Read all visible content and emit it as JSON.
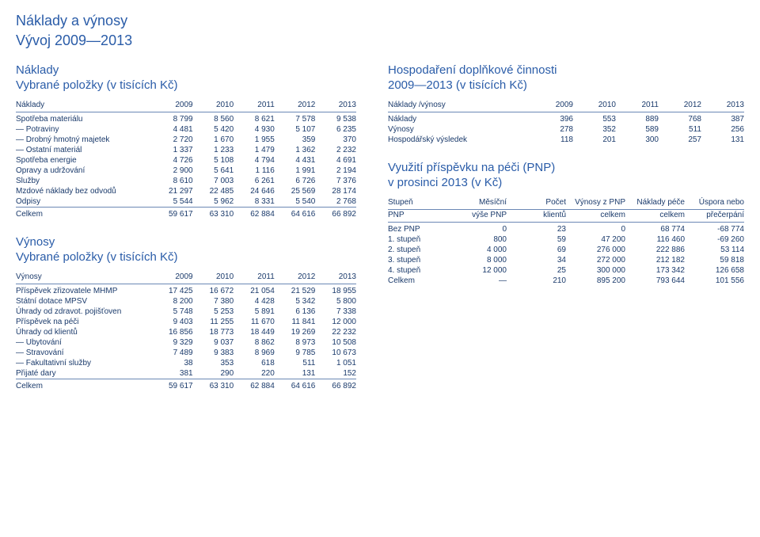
{
  "page_title_1": "Náklady a výnosy",
  "page_title_2": "Vývoj 2009—2013",
  "left": {
    "naklady_title_1": "Náklady",
    "naklady_title_2": "Vybrané položky (v tisících Kč)",
    "naklady_head": [
      "Náklady",
      "2009",
      "2010",
      "2011",
      "2012",
      "2013"
    ],
    "naklady_rows": [
      [
        "Spotřeba materiálu",
        "8 799",
        "8 560",
        "8 621",
        "7 578",
        "9 538"
      ],
      [
        "— Potraviny",
        "4 481",
        "5 420",
        "4 930",
        "5 107",
        "6 235"
      ],
      [
        "— Drobný hmotný majetek",
        "2 720",
        "1 670",
        "1 955",
        "359",
        "370"
      ],
      [
        "— Ostatní materiál",
        "1 337",
        "1 233",
        "1 479",
        "1 362",
        "2 232"
      ],
      [
        "Spotřeba energie",
        "4 726",
        "5 108",
        "4 794",
        "4 431",
        "4 691"
      ],
      [
        "Opravy a udržování",
        "2 900",
        "5 641",
        "1 116",
        "1 991",
        "2 194"
      ],
      [
        "Služby",
        "8 610",
        "7 003",
        "6 261",
        "6 726",
        "7 376"
      ],
      [
        "Mzdové náklady bez odvodů",
        "21 297",
        "22 485",
        "24 646",
        "25 569",
        "28 174"
      ],
      [
        "Odpisy",
        "5 544",
        "5 962",
        "8 331",
        "5 540",
        "2 768"
      ]
    ],
    "naklady_total": [
      "Celkem",
      "59 617",
      "63 310",
      "62 884",
      "64 616",
      "66 892"
    ],
    "vynosy_title_1": "Výnosy",
    "vynosy_title_2": "Vybrané položky (v tisících Kč)",
    "vynosy_head": [
      "Výnosy",
      "2009",
      "2010",
      "2011",
      "2012",
      "2013"
    ],
    "vynosy_rows": [
      [
        "Příspěvek zřizovatele MHMP",
        "17 425",
        "16 672",
        "21 054",
        "21 529",
        "18 955"
      ],
      [
        "Státní dotace MPSV",
        "8 200",
        "7 380",
        "4 428",
        "5 342",
        "5 800"
      ],
      [
        "Úhrady od zdravot. pojišťoven",
        "5 748",
        "5 253",
        "5 891",
        "6 136",
        "7 338"
      ],
      [
        "Příspěvek na péči",
        "9 403",
        "11 255",
        "11 670",
        "11 841",
        "12 000"
      ],
      [
        "Úhrady od klientů",
        "16 856",
        "18 773",
        "18 449",
        "19 269",
        "22 232"
      ],
      [
        "— Ubytování",
        "9 329",
        "9 037",
        "8 862",
        "8 973",
        "10 508"
      ],
      [
        "— Stravování",
        "7 489",
        "9 383",
        "8 969",
        "9 785",
        "10 673"
      ],
      [
        "— Fakultativní služby",
        "38",
        "353",
        "618",
        "511",
        "1 051"
      ],
      [
        "Přijaté dary",
        "381",
        "290",
        "220",
        "131",
        "152"
      ]
    ],
    "vynosy_total": [
      "Celkem",
      "59 617",
      "63 310",
      "62 884",
      "64 616",
      "66 892"
    ]
  },
  "right": {
    "hosp_title_1": "Hospodaření doplňkové činnosti",
    "hosp_title_2": "2009—2013 (v tisících Kč)",
    "hosp_head": [
      "Náklady /výnosy",
      "2009",
      "2010",
      "2011",
      "2012",
      "2013"
    ],
    "hosp_rows": [
      [
        "Náklady",
        "396",
        "553",
        "889",
        "768",
        "387"
      ],
      [
        "Výnosy",
        "278",
        "352",
        "589",
        "511",
        "256"
      ],
      [
        "Hospodářský výsledek",
        "118",
        "201",
        "300",
        "257",
        "131"
      ]
    ],
    "pnp_title_1": "Využití příspěvku na péči (PNP)",
    "pnp_title_2": "v prosinci 2013 (v Kč)",
    "pnp_head1": [
      "Stupeň",
      "Měsíční",
      "Počet",
      "Výnosy z PNP",
      "Náklady péče",
      "Úspora nebo"
    ],
    "pnp_head2": [
      "PNP",
      "výše PNP",
      "klientů",
      "celkem",
      "celkem",
      "přečerpání"
    ],
    "pnp_rows": [
      [
        "Bez PNP",
        "0",
        "23",
        "0",
        "68 774",
        "-68 774"
      ],
      [
        "1. stupeň",
        "800",
        "59",
        "47 200",
        "116 460",
        "-69 260"
      ],
      [
        "2. stupeň",
        "4 000",
        "69",
        "276 000",
        "222 886",
        "53 114"
      ],
      [
        "3. stupeň",
        "8 000",
        "34",
        "272 000",
        "212 182",
        "59 818"
      ],
      [
        "4. stupeň",
        "12 000",
        "25",
        "300 000",
        "173 342",
        "126 658"
      ],
      [
        "Celkem",
        "—",
        "210",
        "895 200",
        "793 644",
        "101 556"
      ]
    ]
  },
  "colors": {
    "text": "#1a3a6b",
    "heading": "#2a5ca8",
    "rule": "#6b88b5",
    "background": "#ffffff"
  }
}
